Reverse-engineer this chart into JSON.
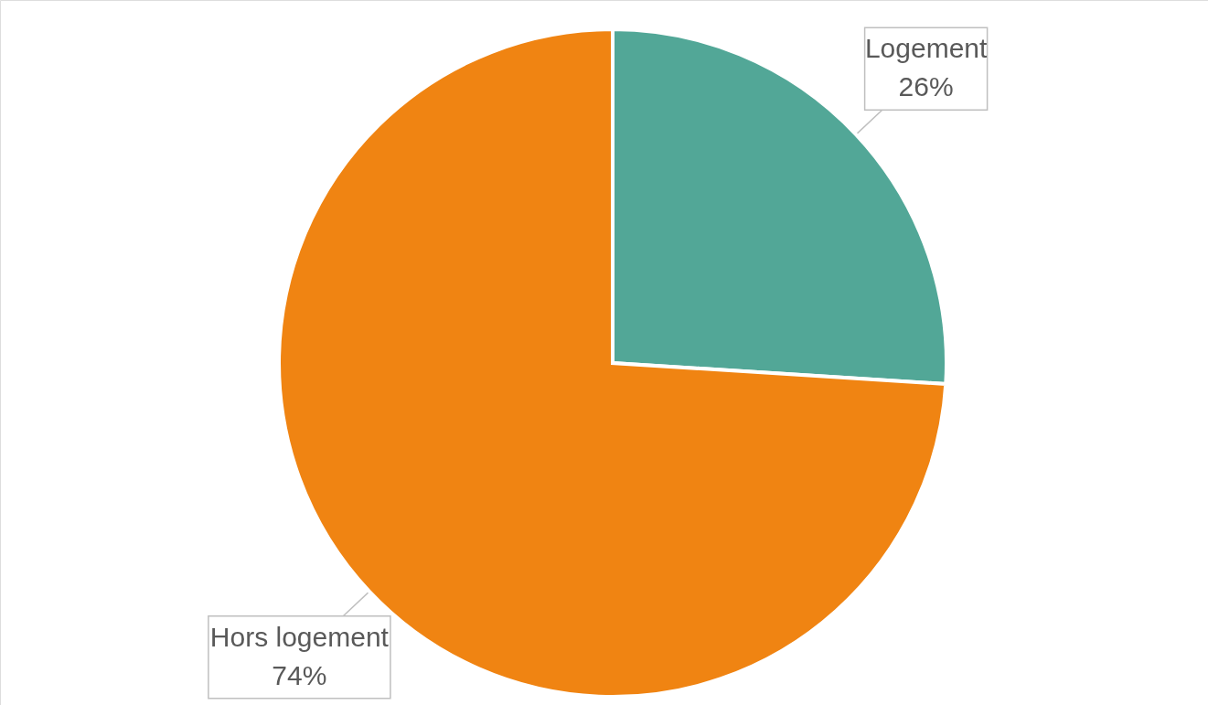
{
  "chart_data": {
    "type": "pie",
    "categories": [
      "Logement",
      "Hors logement"
    ],
    "values": [
      26,
      74
    ],
    "value_labels": [
      "26%",
      "74%"
    ],
    "colors": [
      "#52a797",
      "#f08412"
    ]
  }
}
